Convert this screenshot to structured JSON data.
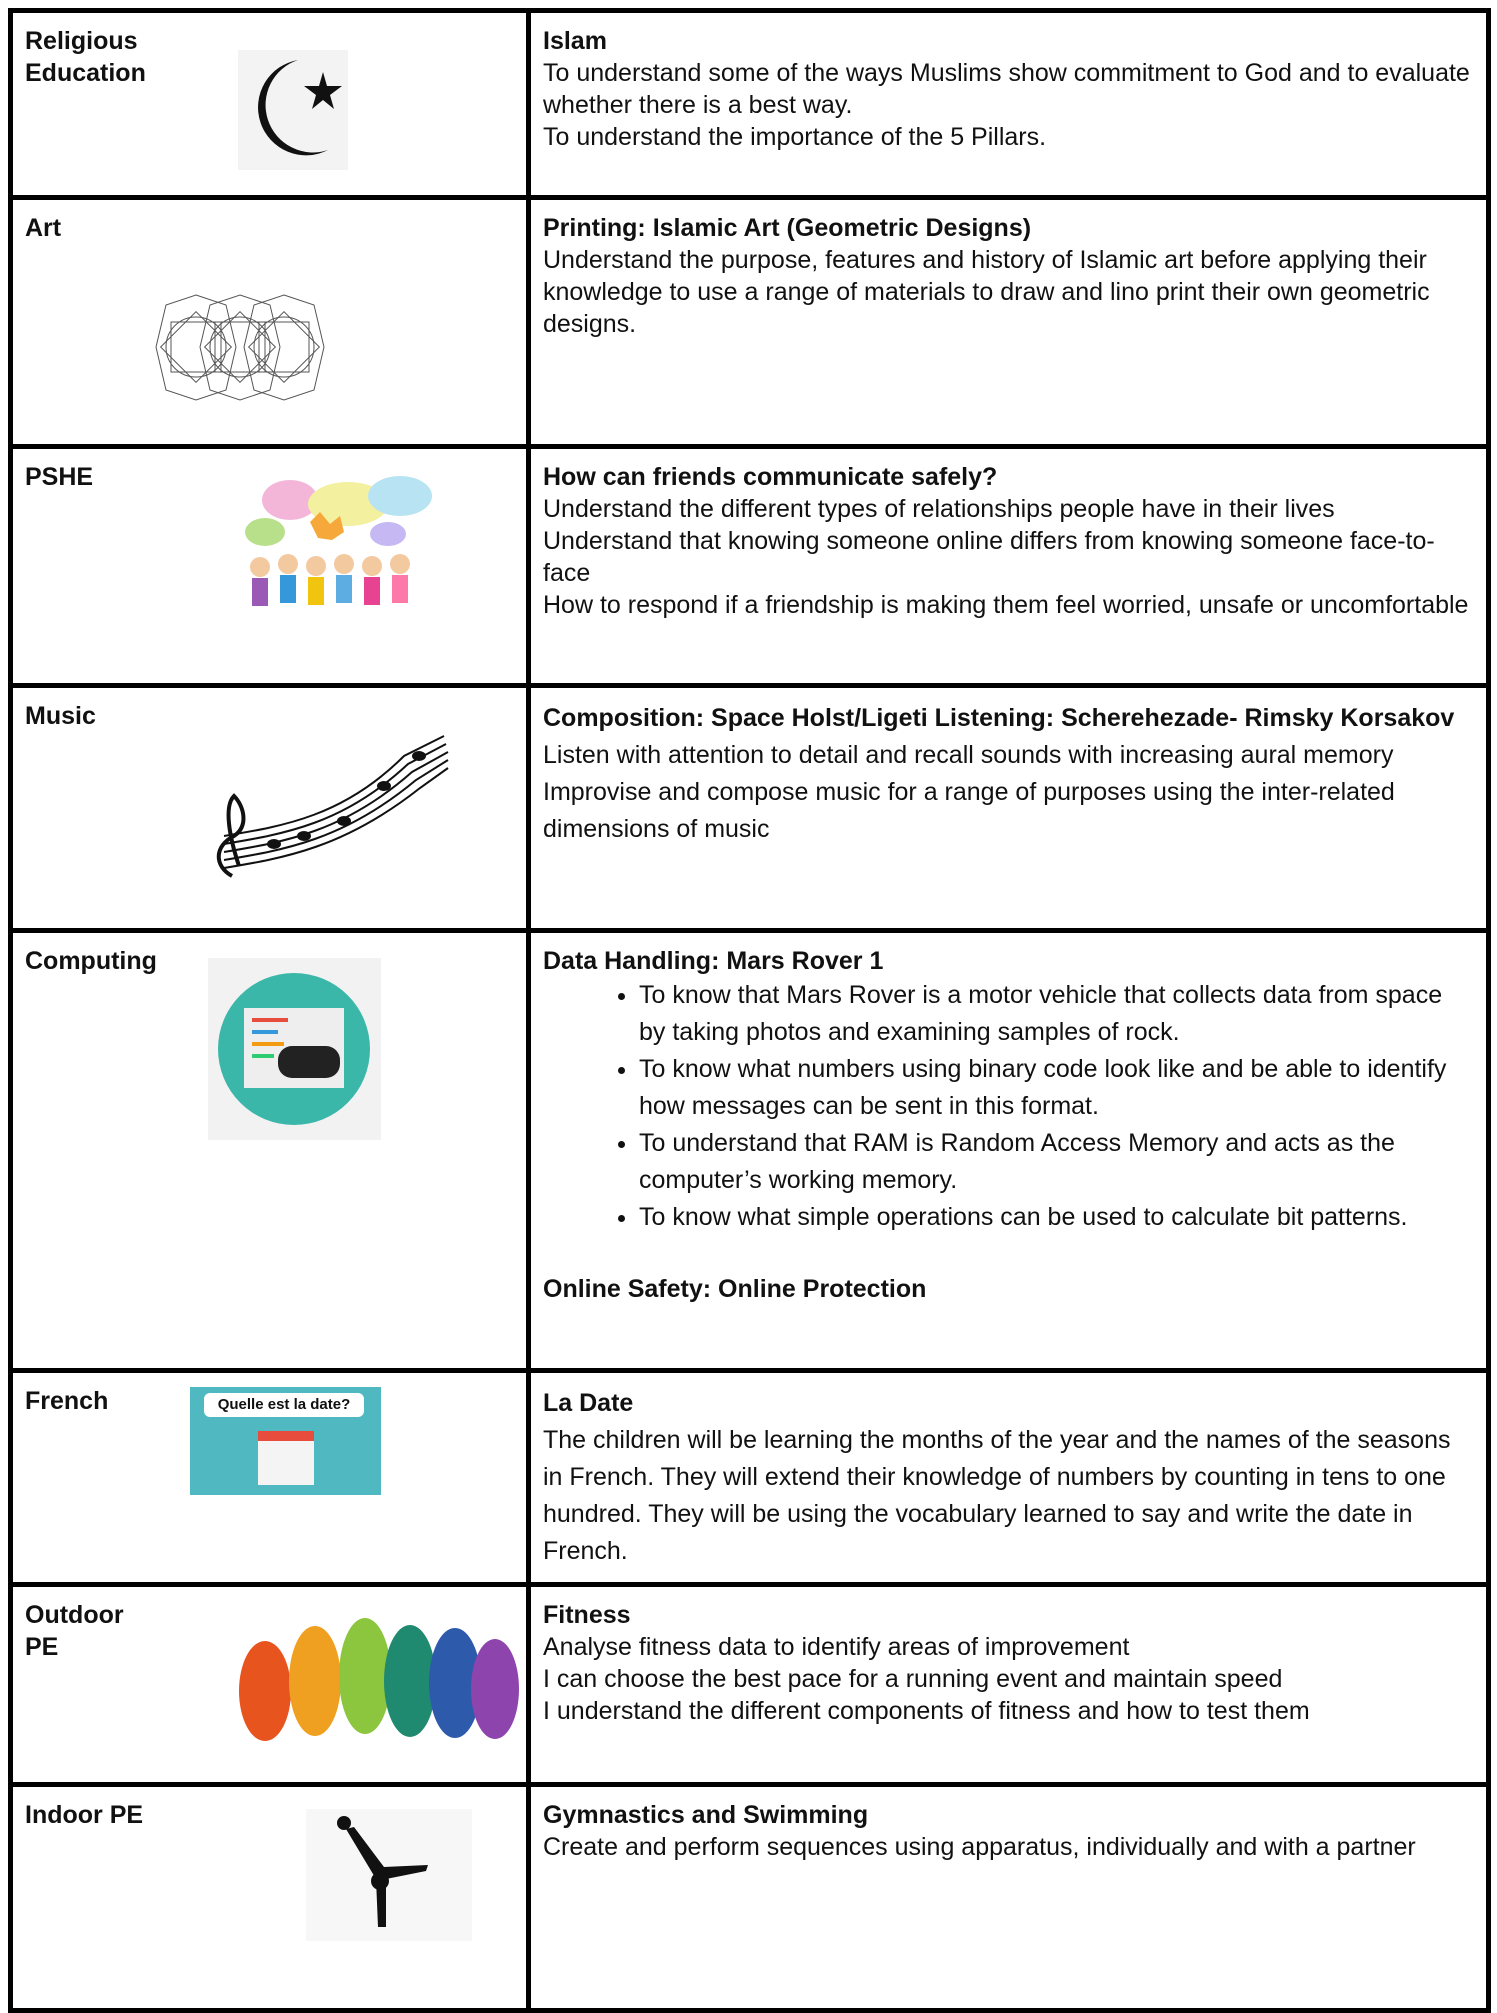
{
  "rows": [
    {
      "subject": [
        "Religious",
        "Education"
      ],
      "heading": "Islam",
      "text": [
        "To understand some of the ways Muslims show commitment to God and to evaluate whether there is a best way.",
        "To understand the importance of the 5 Pillars."
      ]
    },
    {
      "subject": [
        "Art"
      ],
      "heading": "Printing: Islamic Art (Geometric Designs)",
      "text": [
        "Understand the purpose, features and history of Islamic art before applying their knowledge to use a range of materials to draw and lino print their own geometric designs."
      ]
    },
    {
      "subject": [
        "PSHE"
      ],
      "heading": "How can friends communicate safely?",
      "text": [
        "Understand the different types of relationships people have in their lives",
        "Understand that knowing someone online differs from knowing someone face-to-face",
        "How to respond if a friendship is making them feel worried, unsafe or uncomfortable"
      ]
    },
    {
      "subject": [
        "Music"
      ],
      "heading": "Composition: Space Holst/Ligeti  Listening: Scherehezade- Rimsky Korsakov",
      "text": [
        "Listen with attention to detail and recall sounds with increasing aural memory",
        "Improvise and compose music for a range of purposes using the inter-related dimensions of music"
      ]
    },
    {
      "subject": [
        "Computing"
      ],
      "heading": "Data Handling: Mars Rover 1",
      "bullets": [
        "To know that Mars Rover is a motor vehicle that collects data from space by taking photos and examining samples of rock.",
        "To know what numbers using binary code look like and be able to identify how messages can be sent in this format.",
        "To understand that RAM is Random Access Memory and acts as the computer’s working memory.",
        "To know what simple operations can be used to calculate bit patterns."
      ],
      "footer_heading": "Online Safety: Online Protection"
    },
    {
      "subject": [
        "French"
      ],
      "image_text": "Quelle est la date?",
      "heading": "La Date",
      "text": [
        "The children will be learning the months of the year and the names of the seasons in French. They will extend their knowledge of numbers by counting in tens to one hundred. They will be using the vocabulary learned to say and write the date in French."
      ]
    },
    {
      "subject": [
        "Outdoor",
        "PE"
      ],
      "heading": "Fitness",
      "text": [
        "Analyse fitness data to identify areas of improvement",
        "I can choose the best pace for a running event and maintain speed",
        "I understand the different components of fitness and how to test them"
      ]
    },
    {
      "subject": [
        "Indoor PE"
      ],
      "heading": "Gymnastics and Swimming",
      "text": [
        "Create and perform sequences using apparatus, individually and with a partner"
      ]
    }
  ]
}
